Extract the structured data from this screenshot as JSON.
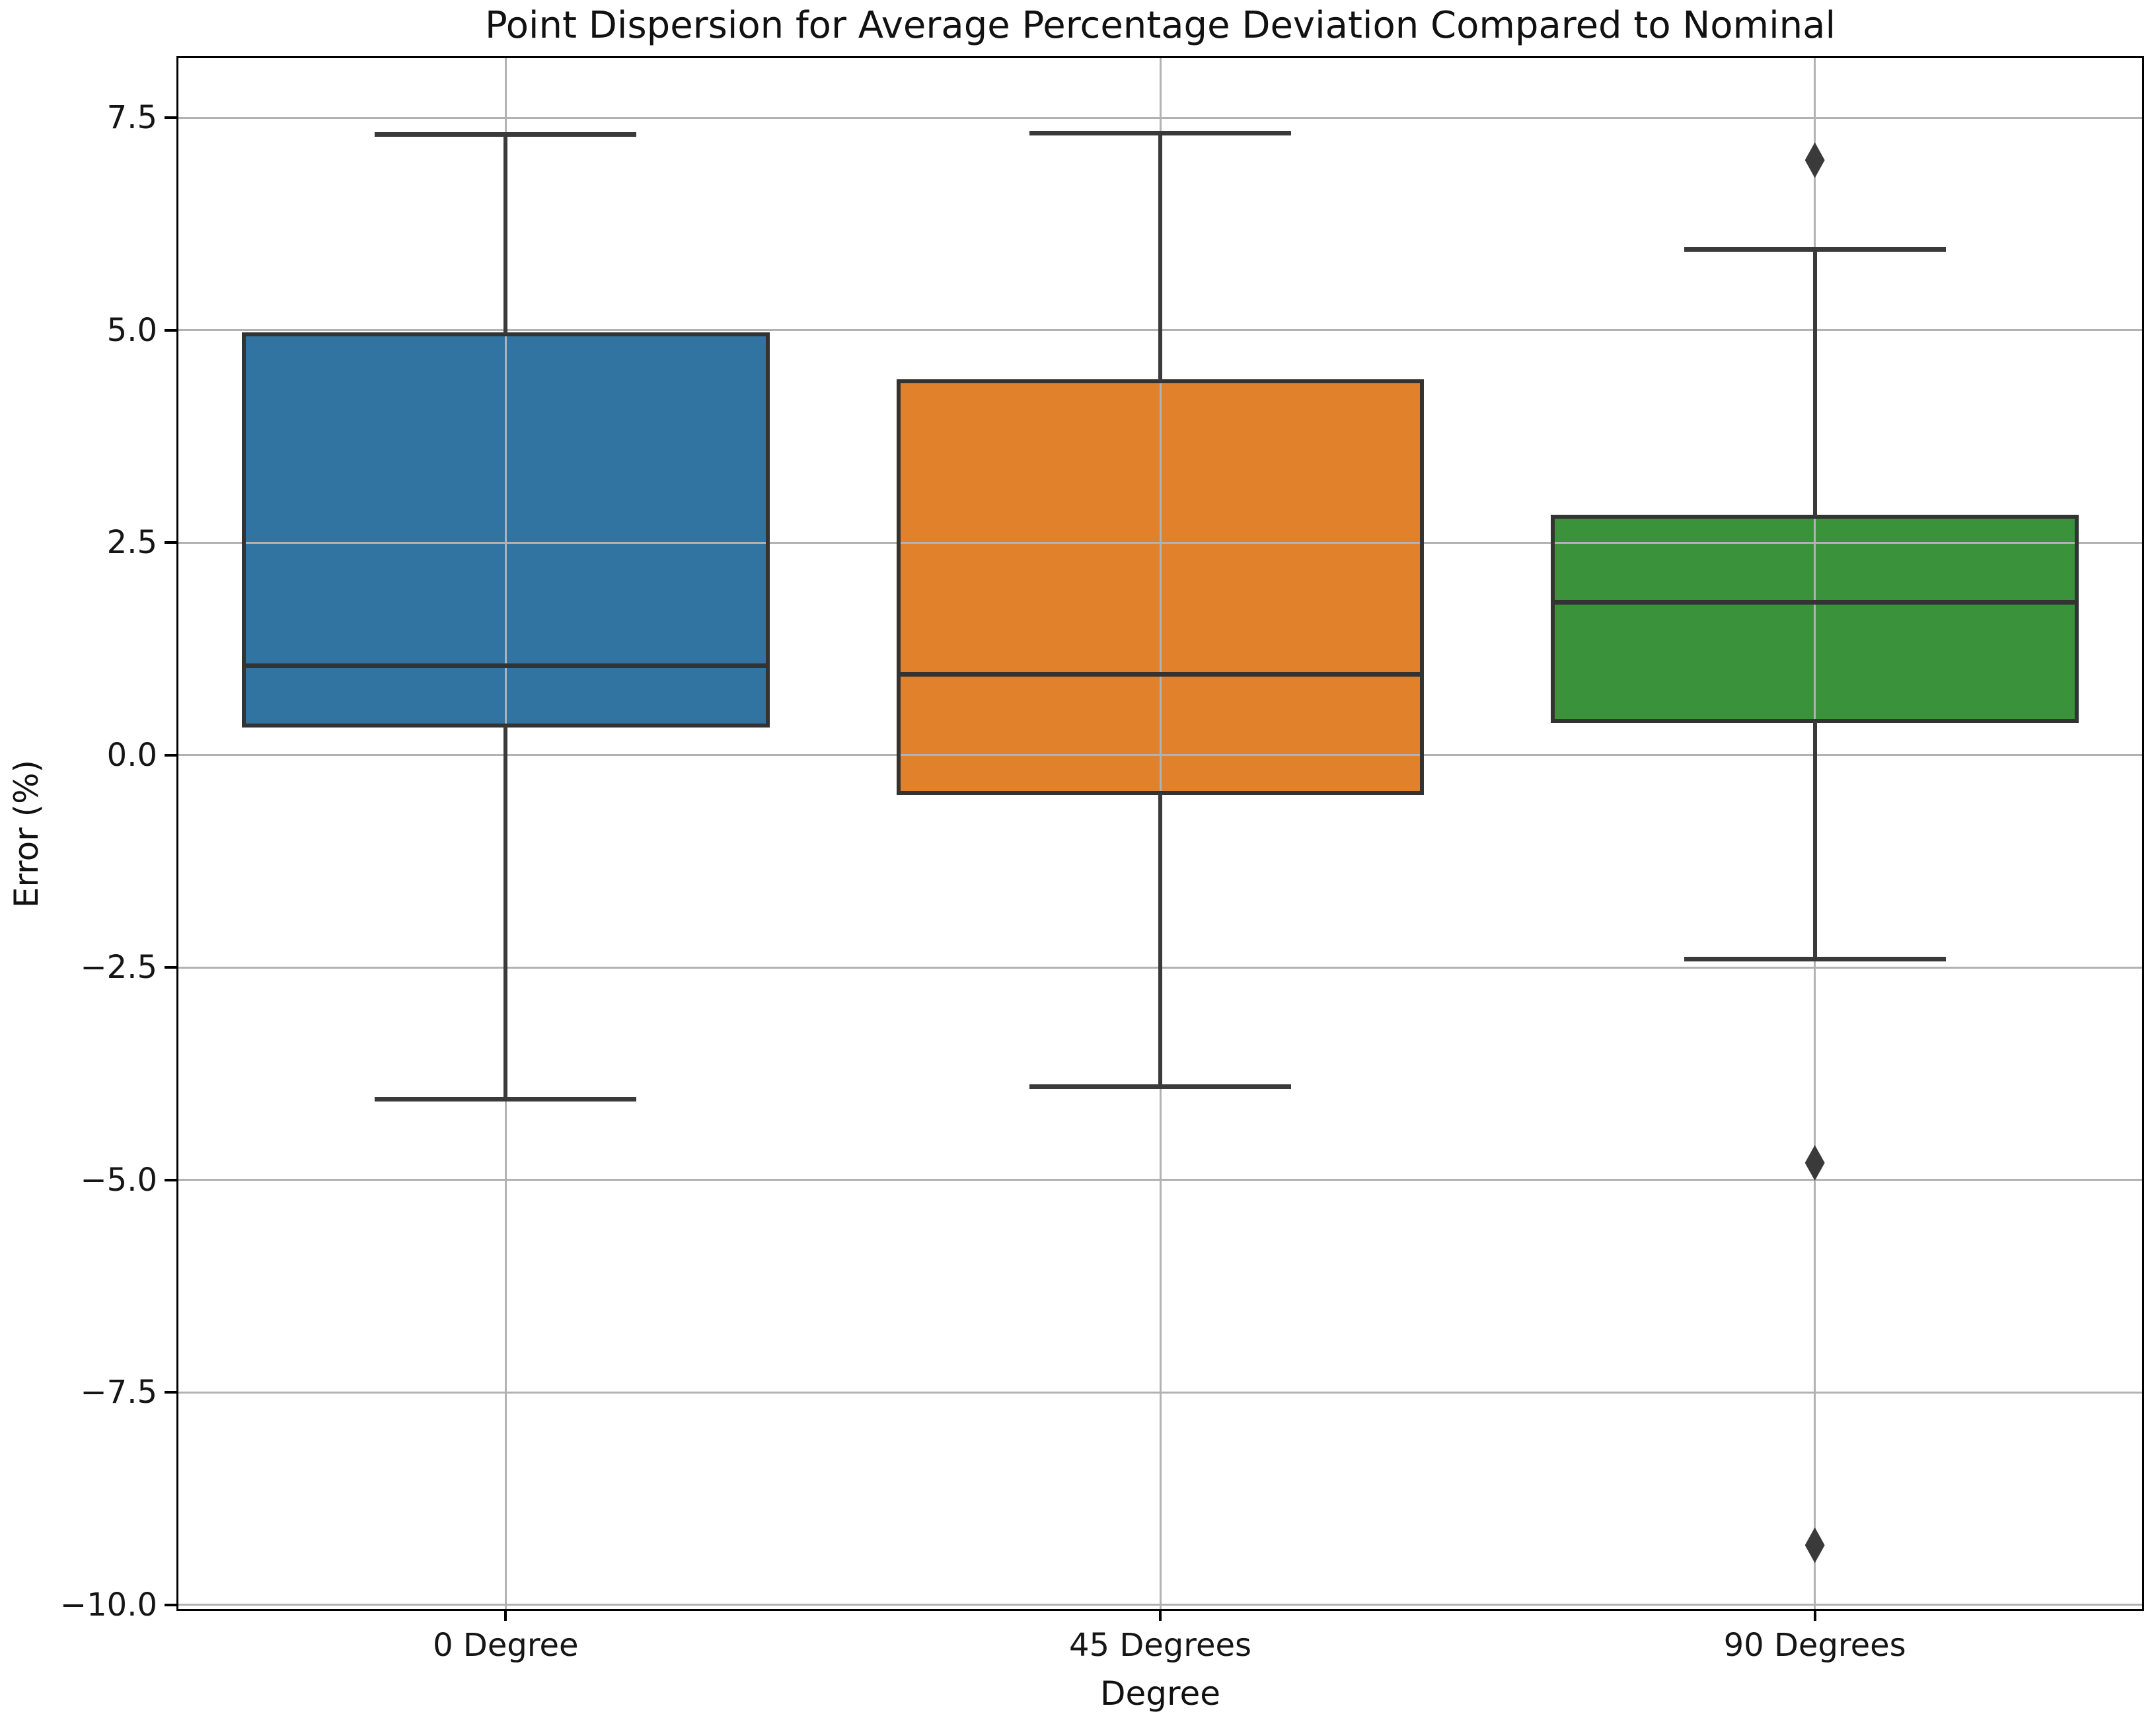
{
  "figure": {
    "background": "#ffffff"
  },
  "chart_data": {
    "type": "box",
    "title": "Point Dispersion for Average Percentage Deviation Compared to Nominal",
    "xlabel": "Degree",
    "ylabel": "Error (%)",
    "categories": [
      "0 Degree",
      "45 Degrees",
      "90 Degrees"
    ],
    "ylim": [
      -10.05,
      8.2
    ],
    "grid": true,
    "legend": "none",
    "y_ticks": [
      7.5,
      5.0,
      2.5,
      0.0,
      -2.5,
      -5.0,
      -7.5,
      -10.0
    ],
    "y_tick_labels": [
      "7.5",
      "5.0",
      "2.5",
      "0.0",
      "−2.5",
      "−5.0",
      "−7.5",
      "−10.0"
    ],
    "colors": {
      "box_blue": "#3274A1",
      "box_orange": "#E1812C",
      "box_green": "#3A923A",
      "stroke": "#3a3a3a",
      "grid": "#b2b2b2",
      "spine": "#000000",
      "text": "#151515"
    },
    "series": [
      {
        "category": "0 Degree",
        "color": "#3274A1",
        "whisker_low": -4.05,
        "q1": 0.35,
        "median": 1.05,
        "q3": 4.95,
        "whisker_high": 7.3,
        "outliers": []
      },
      {
        "category": "45 Degrees",
        "color": "#E1812C",
        "whisker_low": -3.9,
        "q1": -0.45,
        "median": 0.95,
        "q3": 4.4,
        "whisker_high": 7.32,
        "outliers": []
      },
      {
        "category": "90 Degrees",
        "color": "#3A923A",
        "whisker_low": -2.4,
        "q1": 0.4,
        "median": 1.8,
        "q3": 2.8,
        "whisker_high": 5.95,
        "outliers": [
          7.0,
          -4.8,
          -9.3
        ]
      }
    ]
  }
}
